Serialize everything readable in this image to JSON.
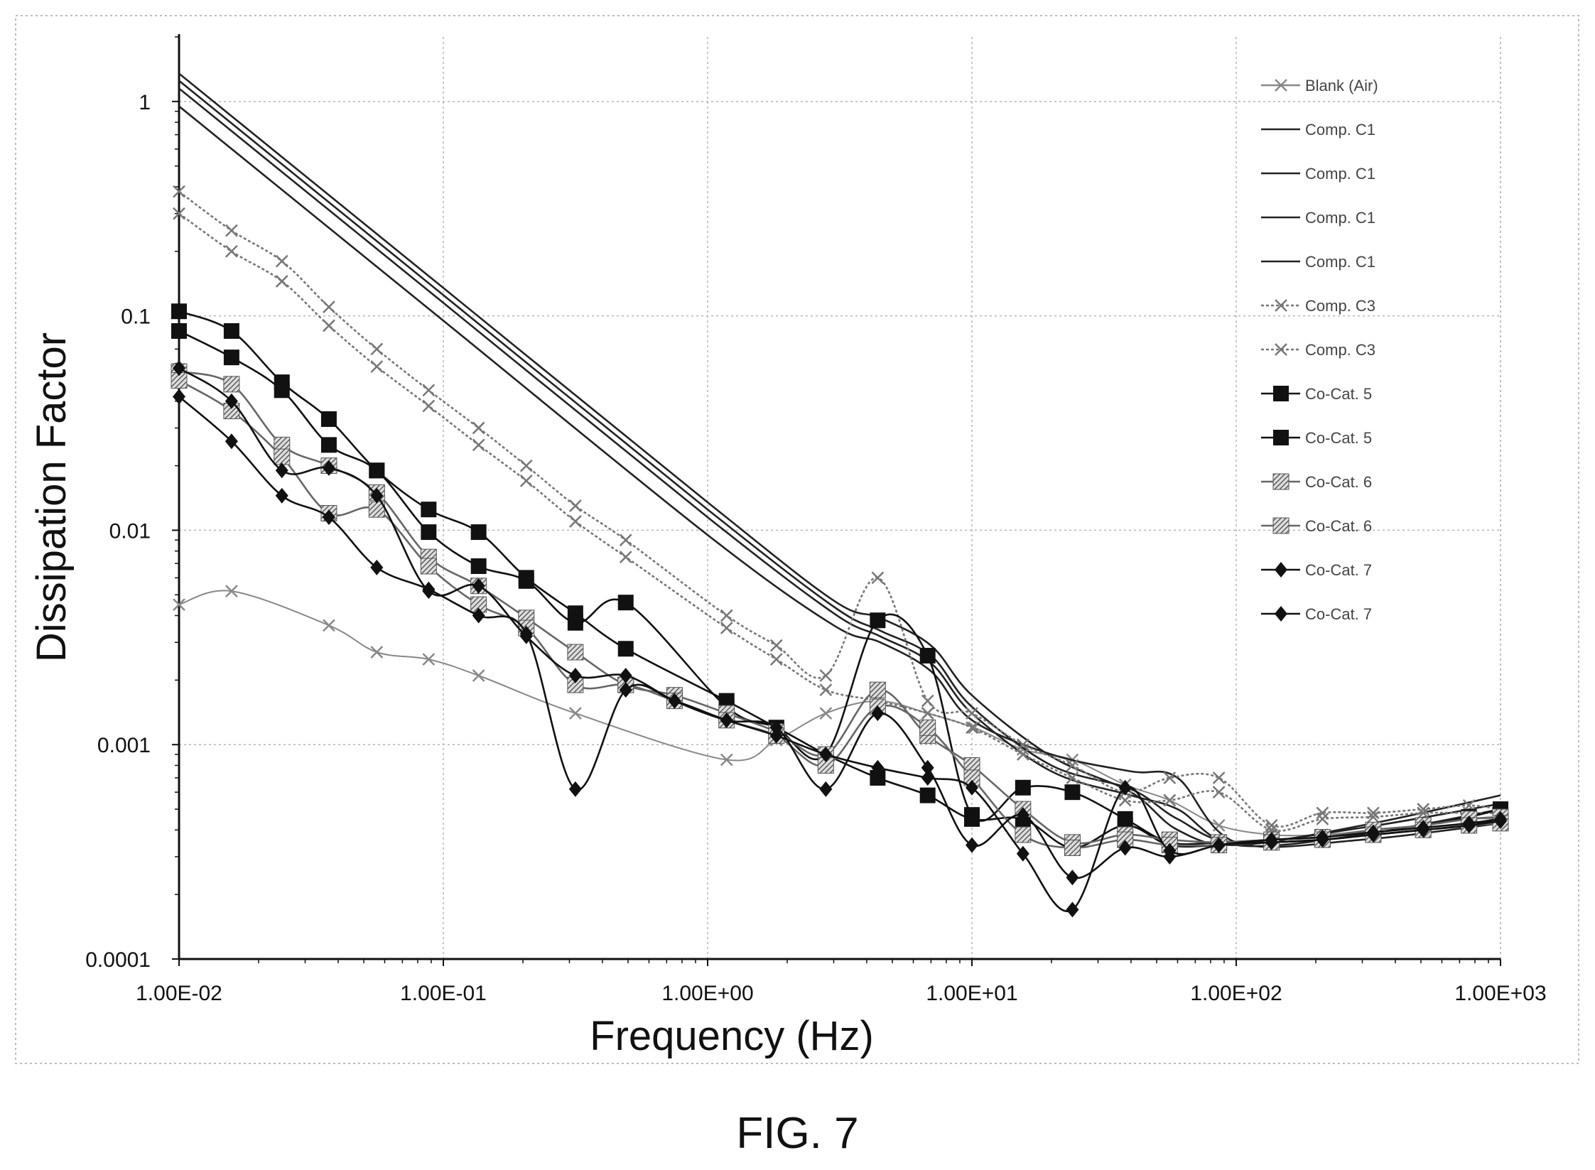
{
  "figure_label": "FIG. 7",
  "chart_data": {
    "type": "line",
    "xlabel": "Frequency (Hz)",
    "ylabel": "Dissipation Factor",
    "x_scale": "log",
    "y_scale": "log",
    "xlim": [
      0.01,
      1000
    ],
    "ylim": [
      0.0001,
      2
    ],
    "x_ticks": [
      0.01,
      0.1,
      1,
      10,
      100,
      1000
    ],
    "x_tick_labels": [
      "1.00E-02",
      "1.00E-01",
      "1.00E+00",
      "1.00E+01",
      "1.00E+02",
      "1.00E+03"
    ],
    "y_ticks": [
      0.0001,
      0.001,
      0.01,
      0.1,
      1
    ],
    "y_tick_labels": [
      "0.0001",
      "0.001",
      "0.01",
      "0.1",
      "1"
    ],
    "grid": true,
    "legend_position": "top-right",
    "series": [
      {
        "name": "Blank (Air)",
        "color": "#888888",
        "marker": "x",
        "style": "thin",
        "x": [
          0.01,
          0.0158,
          0.0369,
          0.056,
          0.088,
          0.136,
          0.316,
          1.18,
          1.82,
          2.8,
          4.4,
          6.8,
          10.2,
          15.6,
          24,
          38,
          56,
          86,
          136,
          212,
          330,
          510,
          760,
          1000
        ],
        "y": [
          0.0045,
          0.0052,
          0.0036,
          0.0027,
          0.0025,
          0.0021,
          0.0014,
          0.00085,
          0.00105,
          0.0014,
          0.0016,
          0.0014,
          0.0012,
          0.00095,
          0.00085,
          0.00065,
          0.00055,
          0.00042,
          0.00038,
          0.00038,
          0.0004,
          0.00042,
          0.00045,
          0.00045
        ]
      },
      {
        "name": "Comp. C1",
        "color": "#222222",
        "marker": "none",
        "style": "solid",
        "x": [
          0.01,
          0.1,
          1,
          3,
          4.5,
          7,
          10,
          20,
          40,
          60,
          100,
          300,
          1000
        ],
        "y": [
          1.35,
          0.135,
          0.0135,
          0.0047,
          0.0039,
          0.0029,
          0.0017,
          0.00088,
          0.0006,
          0.0004,
          0.00034,
          0.00042,
          0.00058
        ]
      },
      {
        "name": "Comp. C1",
        "color": "#222222",
        "marker": "none",
        "style": "solid",
        "x": [
          0.01,
          0.1,
          1,
          3,
          4.5,
          7,
          10,
          20,
          40,
          60,
          100,
          300,
          1000
        ],
        "y": [
          1.25,
          0.125,
          0.0125,
          0.0044,
          0.0034,
          0.0026,
          0.0015,
          0.0008,
          0.00062,
          0.00045,
          0.00035,
          0.00041,
          0.00053
        ]
      },
      {
        "name": "Comp. C1",
        "color": "#222222",
        "marker": "none",
        "style": "solid",
        "x": [
          0.01,
          0.1,
          1,
          3,
          4.5,
          7,
          10,
          20,
          40,
          60,
          100,
          300,
          1000
        ],
        "y": [
          1.15,
          0.115,
          0.0115,
          0.0041,
          0.0032,
          0.0024,
          0.0014,
          0.00075,
          0.00058,
          0.0005,
          0.00034,
          0.00038,
          0.0005
        ]
      },
      {
        "name": "Comp. C1",
        "color": "#222222",
        "marker": "none",
        "style": "solid",
        "x": [
          0.01,
          0.1,
          1,
          3,
          4.5,
          7,
          10,
          20,
          40,
          60,
          100,
          300,
          1000
        ],
        "y": [
          0.95,
          0.095,
          0.0095,
          0.0036,
          0.003,
          0.0022,
          0.0013,
          0.0009,
          0.00075,
          0.0007,
          0.00035,
          0.00036,
          0.00043
        ]
      },
      {
        "name": "Comp. C3",
        "color": "#777777",
        "marker": "x",
        "style": "dotted",
        "x": [
          0.01,
          0.0158,
          0.0245,
          0.0369,
          0.056,
          0.088,
          0.136,
          0.206,
          0.316,
          0.49,
          1.18,
          1.82,
          2.8,
          4.4,
          6.8,
          10,
          15.6,
          24,
          38,
          56,
          86,
          136,
          212,
          330,
          510,
          760,
          1000
        ],
        "y": [
          0.38,
          0.25,
          0.18,
          0.11,
          0.07,
          0.045,
          0.03,
          0.02,
          0.013,
          0.009,
          0.004,
          0.0029,
          0.0021,
          0.006,
          0.0016,
          0.0014,
          0.001,
          0.0008,
          0.0006,
          0.0007,
          0.0007,
          0.00042,
          0.00048,
          0.00048,
          0.0005,
          0.00052,
          0.0005
        ]
      },
      {
        "name": "Comp. C3",
        "color": "#777777",
        "marker": "x",
        "style": "dotted",
        "x": [
          0.01,
          0.0158,
          0.0245,
          0.0369,
          0.056,
          0.088,
          0.136,
          0.206,
          0.316,
          0.49,
          1.18,
          1.82,
          2.8,
          4.4,
          6.8,
          10,
          15.6,
          24,
          38,
          56,
          86,
          136,
          212,
          330,
          510,
          760,
          1000
        ],
        "y": [
          0.3,
          0.2,
          0.145,
          0.09,
          0.058,
          0.038,
          0.025,
          0.017,
          0.011,
          0.0075,
          0.0035,
          0.0025,
          0.0018,
          0.0016,
          0.0014,
          0.0012,
          0.0009,
          0.0007,
          0.00055,
          0.00055,
          0.0006,
          0.0004,
          0.00045,
          0.00046,
          0.00048,
          0.00048,
          0.00048
        ]
      },
      {
        "name": "Co-Cat. 5",
        "color": "#111111",
        "marker": "square",
        "style": "solid",
        "x": [
          0.01,
          0.0158,
          0.0245,
          0.0369,
          0.056,
          0.088,
          0.136,
          0.206,
          0.316,
          0.49,
          1.18,
          1.82,
          2.8,
          4.4,
          6.8,
          10,
          15.6,
          24,
          38,
          56,
          86,
          136,
          212,
          330,
          510,
          760,
          1000
        ],
        "y": [
          0.105,
          0.085,
          0.049,
          0.033,
          0.019,
          0.0125,
          0.0098,
          0.006,
          0.0041,
          0.0028,
          0.0016,
          0.0012,
          0.0009,
          0.0038,
          0.0026,
          0.00047,
          0.00063,
          0.0006,
          0.00045,
          0.00035,
          0.00035,
          0.00036,
          0.00037,
          0.0004,
          0.00042,
          0.00046,
          0.0005
        ]
      },
      {
        "name": "Co-Cat. 5",
        "color": "#111111",
        "marker": "square",
        "style": "solid",
        "x": [
          0.01,
          0.0158,
          0.0245,
          0.0369,
          0.056,
          0.088,
          0.136,
          0.206,
          0.316,
          0.49,
          1.18,
          1.82,
          2.8,
          4.4,
          6.8,
          10,
          15.6,
          24,
          38,
          56,
          86,
          136,
          212,
          330,
          510,
          760,
          1000
        ],
        "y": [
          0.085,
          0.064,
          0.045,
          0.025,
          0.019,
          0.0098,
          0.0068,
          0.0058,
          0.0037,
          0.0046,
          0.0015,
          0.0012,
          0.0009,
          0.0007,
          0.00058,
          0.00045,
          0.00045,
          0.00033,
          0.00042,
          0.00034,
          0.00034,
          0.00035,
          0.00036,
          0.00038,
          0.0004,
          0.00042,
          0.00045
        ]
      },
      {
        "name": "Co-Cat. 6",
        "color": "#666666",
        "marker": "hatched-square",
        "style": "solid",
        "x": [
          0.01,
          0.0158,
          0.0245,
          0.0369,
          0.056,
          0.088,
          0.136,
          0.206,
          0.316,
          0.49,
          0.75,
          1.18,
          1.82,
          2.8,
          4.4,
          6.8,
          10,
          15.6,
          24,
          38,
          56,
          86,
          136,
          212,
          330,
          510,
          760,
          1000
        ],
        "y": [
          0.055,
          0.048,
          0.025,
          0.02,
          0.015,
          0.0075,
          0.0055,
          0.0039,
          0.0027,
          0.0019,
          0.0017,
          0.0014,
          0.00115,
          0.0009,
          0.0018,
          0.0011,
          0.0008,
          0.0005,
          0.00035,
          0.00038,
          0.00036,
          0.00035,
          0.00036,
          0.00037,
          0.0004,
          0.00042,
          0.00045,
          0.00046
        ]
      },
      {
        "name": "Co-Cat. 6",
        "color": "#666666",
        "marker": "hatched-square",
        "style": "solid",
        "x": [
          0.01,
          0.0158,
          0.0245,
          0.0369,
          0.056,
          0.088,
          0.136,
          0.206,
          0.316,
          0.49,
          0.75,
          1.18,
          1.82,
          2.8,
          4.4,
          6.8,
          10,
          15.6,
          24,
          38,
          56,
          86,
          136,
          212,
          330,
          510,
          760,
          1000
        ],
        "y": [
          0.05,
          0.036,
          0.022,
          0.012,
          0.0125,
          0.0068,
          0.0045,
          0.0035,
          0.0019,
          0.0019,
          0.0016,
          0.0013,
          0.0011,
          0.0008,
          0.0015,
          0.0012,
          0.0007,
          0.00038,
          0.00033,
          0.00036,
          0.00034,
          0.00034,
          0.00035,
          0.00036,
          0.00038,
          0.0004,
          0.00042,
          0.00043
        ]
      },
      {
        "name": "Co-Cat. 7",
        "color": "#111111",
        "marker": "diamond",
        "style": "solid",
        "x": [
          0.01,
          0.0158,
          0.0245,
          0.0369,
          0.056,
          0.088,
          0.136,
          0.206,
          0.316,
          0.49,
          0.75,
          1.18,
          1.82,
          2.8,
          4.4,
          6.8,
          10,
          15.6,
          24,
          38,
          56,
          86,
          136,
          212,
          330,
          510,
          760,
          1000
        ],
        "y": [
          0.057,
          0.04,
          0.019,
          0.0195,
          0.0145,
          0.0052,
          0.0055,
          0.0032,
          0.0021,
          0.0021,
          0.0016,
          0.0013,
          0.0012,
          0.00062,
          0.0014,
          0.00078,
          0.00034,
          0.00047,
          0.00024,
          0.00033,
          0.0003,
          0.00034,
          0.00036,
          0.00037,
          0.00039,
          0.00041,
          0.00043,
          0.00045
        ]
      },
      {
        "name": "Co-Cat. 7",
        "color": "#111111",
        "marker": "diamond",
        "style": "solid",
        "x": [
          0.01,
          0.0158,
          0.0245,
          0.0369,
          0.056,
          0.088,
          0.136,
          0.206,
          0.316,
          0.49,
          0.75,
          1.18,
          1.82,
          2.8,
          4.4,
          6.8,
          10,
          15.6,
          24,
          38,
          56,
          86,
          136,
          212,
          330,
          510,
          760,
          1000
        ],
        "y": [
          0.042,
          0.026,
          0.0145,
          0.0115,
          0.0067,
          0.0053,
          0.004,
          0.0033,
          0.00062,
          0.0018,
          0.0016,
          0.0013,
          0.0011,
          0.0009,
          0.00078,
          0.0007,
          0.00063,
          0.00031,
          0.00017,
          0.00063,
          0.00032,
          0.00034,
          0.00035,
          0.00036,
          0.00038,
          0.0004,
          0.00042,
          0.00044
        ]
      }
    ]
  }
}
